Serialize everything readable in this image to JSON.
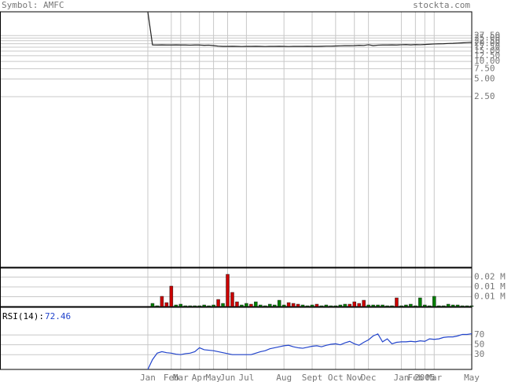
{
  "header": {
    "symbol": "Symbol: AMFC",
    "site": "stockta.com"
  },
  "chart_data": [
    {
      "type": "line",
      "log": true,
      "color": "#222222",
      "grid": true,
      "categories": [
        "Jan",
        null,
        null,
        null,
        null,
        "Feb",
        null,
        "Mar",
        null,
        null,
        null,
        "Apr",
        null,
        null,
        "May",
        null,
        null,
        "Jun",
        null,
        null,
        null,
        "Jul",
        null,
        null,
        null,
        null,
        null,
        null,
        null,
        "Aug",
        null,
        null,
        null,
        null,
        null,
        "Sept",
        null,
        null,
        null,
        null,
        "Oct",
        null,
        null,
        null,
        "Nov",
        null,
        null,
        "Dec",
        null,
        null,
        null,
        null,
        null,
        null,
        "Jan",
        null,
        null,
        "Feb",
        null,
        "2005",
        null,
        "Mar",
        null,
        null,
        null,
        null,
        null,
        null,
        null,
        "May"
      ],
      "values": [
        70,
        19.1,
        19.0,
        19.1,
        19.0,
        19.0,
        19.1,
        19.0,
        19.0,
        18.9,
        19.0,
        19.0,
        18.8,
        18.9,
        18.6,
        18.2,
        18.0,
        18.0,
        18.1,
        18.0,
        17.9,
        18.0,
        18.0,
        18.1,
        18.0,
        17.9,
        18.0,
        18.0,
        18.1,
        18.0,
        17.9,
        18.0,
        18.0,
        18.0,
        18.1,
        18.0,
        18.0,
        18.1,
        18.2,
        18.2,
        18.3,
        18.4,
        18.5,
        18.5,
        18.6,
        18.8,
        18.7,
        19.2,
        18.6,
        18.9,
        19.0,
        19.0,
        19.1,
        19.0,
        19.2,
        19.3,
        19.1,
        19.3,
        19.2,
        19.4,
        19.6,
        19.8,
        19.9,
        20.0,
        20.2,
        20.3,
        20.5,
        20.7,
        20.9,
        21.1
      ],
      "ylim": [
        0.0031,
        70
      ],
      "yticks": [
        {
          "value": 2.5,
          "label": "2.50"
        },
        {
          "value": 5,
          "label": "5.00"
        },
        {
          "value": 7.5,
          "label": "7.50"
        },
        {
          "value": 10,
          "label": "10.00"
        },
        {
          "value": 12.5,
          "label": "12.50"
        },
        {
          "value": 15,
          "label": "15.00"
        },
        {
          "value": 17.5,
          "label": "17.50"
        },
        {
          "value": 20,
          "label": "20.00"
        },
        {
          "value": 22.5,
          "label": "22.50"
        },
        {
          "value": 25,
          "label": "25.00"
        },
        {
          "value": 27.5,
          "label": "27.50"
        }
      ]
    },
    {
      "type": "bar",
      "grid": true,
      "values": [
        0,
        0.0016,
        0.0004,
        0.0052,
        0.002,
        0.0104,
        0.0008,
        0.0012,
        0.0004,
        0.0004,
        0.0004,
        0.0004,
        0.0008,
        0.0004,
        0.0008,
        0.0036,
        0.0016,
        0.0164,
        0.0072,
        0.0024,
        0.0008,
        0.0016,
        0.0012,
        0.0024,
        0.0008,
        0.0004,
        0.0012,
        0.0008,
        0.0032,
        0.0008,
        0.002,
        0.0016,
        0.0012,
        0.0008,
        0.0004,
        0.0008,
        0.0012,
        0.0004,
        0.0008,
        0.0004,
        0.0004,
        0.0008,
        0.0012,
        0.0012,
        0.0024,
        0.0016,
        0.0032,
        0.0008,
        0.0008,
        0.0008,
        0.0008,
        0.0004,
        0.0004,
        0.0044,
        0.0004,
        0.0008,
        0.0012,
        0.0004,
        0.0044,
        0.0008,
        0.0004,
        0.0052,
        0.0004,
        0.0004,
        0.0012,
        0.0008,
        0.0008,
        0.0004,
        0.0004,
        0.0004
      ],
      "colors": [
        "#008000",
        "#008000",
        "#008000",
        "#cc0000",
        "#cc0000",
        "#cc0000",
        "#008000",
        "#008000",
        "#008000",
        "#008000",
        "#008000",
        "#008000",
        "#008000",
        "#008000",
        "#008000",
        "#cc0000",
        "#008000",
        "#cc0000",
        "#cc0000",
        "#cc0000",
        "#008000",
        "#008000",
        "#cc0000",
        "#008000",
        "#008000",
        "#008000",
        "#008000",
        "#008000",
        "#008000",
        "#008000",
        "#cc0000",
        "#cc0000",
        "#cc0000",
        "#008000",
        "#008000",
        "#008000",
        "#cc0000",
        "#008000",
        "#008000",
        "#008000",
        "#008000",
        "#008000",
        "#008000",
        "#cc0000",
        "#cc0000",
        "#cc0000",
        "#cc0000",
        "#008000",
        "#008000",
        "#008000",
        "#008000",
        "#008000",
        "#008000",
        "#cc0000",
        "#008000",
        "#008000",
        "#008000",
        "#008000",
        "#008000",
        "#008000",
        "#008000",
        "#008000",
        "#008000",
        "#008000",
        "#008000",
        "#008000",
        "#008000",
        "#008000",
        "#008000",
        "#008000"
      ],
      "ylim": [
        0,
        0.0196
      ],
      "yticks": [
        {
          "value": 0.015,
          "label": "0.02 M"
        },
        {
          "value": 0.01,
          "label": "0.01 M"
        },
        {
          "value": 0.005,
          "label": "0.01 M"
        }
      ]
    },
    {
      "type": "line",
      "title": "RSI(14):",
      "color": "#2244cc",
      "grid": true,
      "values": [
        0,
        20,
        33,
        36,
        34,
        33,
        31,
        30,
        32,
        33,
        36,
        44,
        40,
        39,
        38,
        36,
        34,
        32,
        30,
        30,
        30,
        30,
        30,
        33,
        36,
        38,
        42,
        44,
        46,
        48,
        49,
        46,
        44,
        43,
        45,
        47,
        48,
        46,
        49,
        51,
        52,
        50,
        54,
        57,
        52,
        49,
        55,
        60,
        68,
        72,
        56,
        62,
        52,
        55,
        56,
        56,
        57,
        56,
        58,
        57,
        62,
        61,
        62,
        65,
        66,
        66,
        68,
        71,
        71,
        72.46
      ],
      "ylim": [
        0,
        126
      ],
      "yticks": [
        70,
        50,
        30
      ]
    }
  ]
}
